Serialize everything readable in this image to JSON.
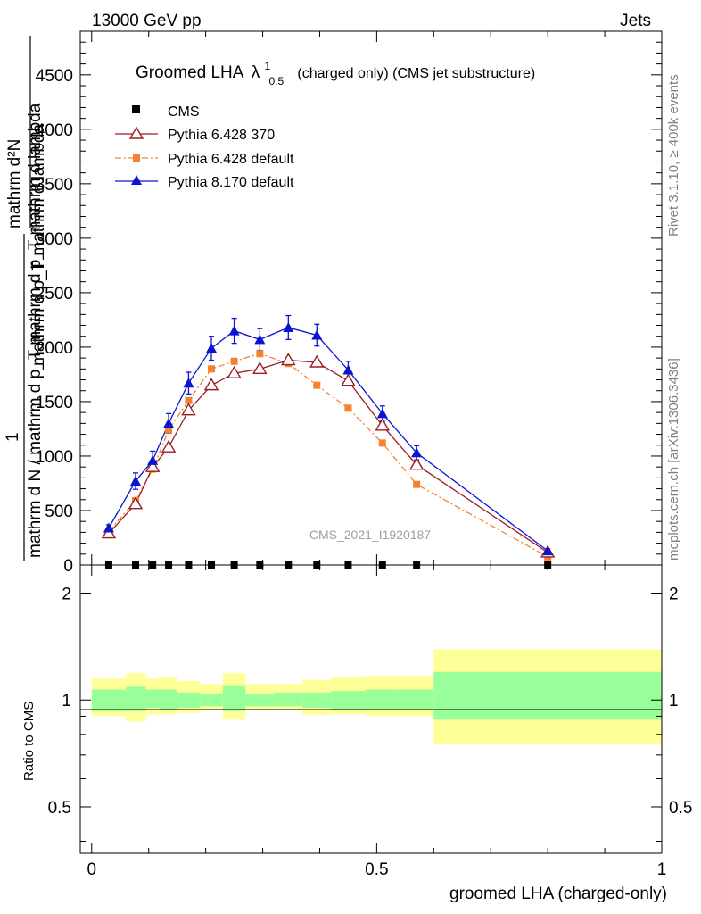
{
  "header": {
    "energy_label": "13000 GeV pp",
    "category_label": "Jets"
  },
  "side_notes": {
    "rivet": "Rivet 3.1.10, ≥ 400k events",
    "mcplots": "mcplots.cern.ch [arXiv:1306.3436]"
  },
  "colors": {
    "cms": "#000000",
    "py6_370": "#9b1c23",
    "py6_default": "#f58231",
    "py8_default": "#0a14d2",
    "band_inner": "#99ff99",
    "band_outer": "#ffff99"
  },
  "chart_data": [
    {
      "type": "line",
      "title_main": "Groomed LHA",
      "title_symbol": "λ",
      "title_sup": "1",
      "title_sub": "0.5",
      "title_rest": "(charged only) (CMS jet substructure)",
      "analysis_label": "CMS_2021_I1920187",
      "ylabel_numerator": "1",
      "ylabel_denominator": "mathrm d N / mathrm d p_T mathrm d p_T mathrm d lambda",
      "ylabel_top_numerator": "mathrm d²N",
      "ylabel_top_denominator": "mathrm d p_T mathrm d lambda",
      "ylim": [
        0,
        4900
      ],
      "xlim": [
        -0.02,
        1.0
      ],
      "yticks": [
        0,
        500,
        1000,
        1500,
        2000,
        2500,
        3000,
        3500,
        4000,
        4500
      ],
      "ytick_labels": [
        "0",
        "500",
        "1000",
        "1500",
        "2000",
        "2500",
        "3000",
        "3500",
        "4000",
        "4500"
      ],
      "legend": [
        "CMS",
        "Pythia 6.428 370",
        "Pythia 6.428 default",
        "Pythia 8.170 default"
      ],
      "legend_position": "top-left",
      "x": [
        0.03,
        0.077,
        0.107,
        0.135,
        0.17,
        0.21,
        0.25,
        0.295,
        0.345,
        0.395,
        0.45,
        0.51,
        0.57,
        0.8
      ],
      "series": [
        {
          "name": "CMS",
          "values": [
            0,
            0,
            0,
            0,
            0,
            0,
            0,
            0,
            0,
            0,
            0,
            0,
            0,
            0
          ]
        },
        {
          "name": "Pythia 6.428 370",
          "values": [
            290,
            560,
            900,
            1080,
            1420,
            1650,
            1760,
            1800,
            1880,
            1860,
            1690,
            1280,
            920,
            115
          ]
        },
        {
          "name": "Pythia 6.428 default",
          "values": [
            310,
            590,
            880,
            1240,
            1510,
            1800,
            1870,
            1940,
            1850,
            1650,
            1440,
            1120,
            740,
            75
          ]
        },
        {
          "name": "Pythia 8.170 default",
          "values": [
            340,
            770,
            960,
            1300,
            1670,
            1990,
            2150,
            2070,
            2180,
            2110,
            1790,
            1390,
            1030,
            130
          ],
          "errors": [
            30,
            75,
            85,
            90,
            100,
            110,
            115,
            100,
            110,
            100,
            80,
            70,
            65,
            18
          ]
        }
      ]
    },
    {
      "type": "area",
      "ylabel": "Ratio to CMS",
      "xlabel": "groomed LHA (charged-only)",
      "ylim": [
        0.37,
        2.4
      ],
      "xlim": [
        -0.02,
        1.0
      ],
      "xticks": [
        0,
        0.5,
        1
      ],
      "xtick_labels": [
        "0",
        "0.5",
        "1"
      ],
      "yticks": [
        0.5,
        1,
        2
      ],
      "ytick_labels": [
        "0.5",
        "1",
        "2"
      ],
      "bin_edges": [
        0,
        0.06,
        0.095,
        0.12,
        0.15,
        0.19,
        0.23,
        0.27,
        0.32,
        0.37,
        0.42,
        0.48,
        0.54,
        0.6,
        1.0
      ],
      "inner_band": [
        [
          0.93,
          1.07
        ],
        [
          0.93,
          1.09
        ],
        [
          0.95,
          1.07
        ],
        [
          0.94,
          1.07
        ],
        [
          0.95,
          1.05
        ],
        [
          0.96,
          1.04
        ],
        [
          0.93,
          1.1
        ],
        [
          0.96,
          1.04
        ],
        [
          0.96,
          1.05
        ],
        [
          0.95,
          1.05
        ],
        [
          0.94,
          1.06
        ],
        [
          0.94,
          1.07
        ],
        [
          0.94,
          1.07
        ],
        [
          0.88,
          1.2
        ]
      ],
      "outer_band": [
        [
          0.9,
          1.15
        ],
        [
          0.87,
          1.19
        ],
        [
          0.91,
          1.15
        ],
        [
          0.91,
          1.16
        ],
        [
          0.92,
          1.13
        ],
        [
          0.94,
          1.11
        ],
        [
          0.88,
          1.19
        ],
        [
          0.94,
          1.11
        ],
        [
          0.94,
          1.11
        ],
        [
          0.91,
          1.14
        ],
        [
          0.91,
          1.16
        ],
        [
          0.9,
          1.17
        ],
        [
          0.9,
          1.17
        ],
        [
          0.75,
          1.39
        ]
      ]
    }
  ]
}
